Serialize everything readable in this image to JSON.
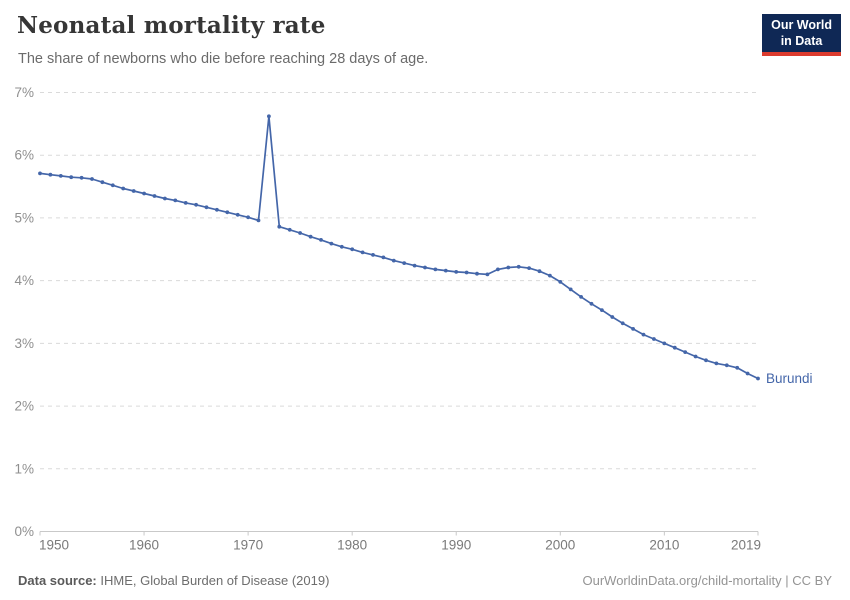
{
  "header": {
    "title": "Neonatal mortality rate",
    "subtitle": "The share of newborns who die before reaching 28 days of age.",
    "logo": {
      "line1": "Our World",
      "line2": "in Data",
      "bg_color": "#0f2855",
      "accent_color": "#dc3b2e"
    }
  },
  "chart_data": {
    "type": "line",
    "title": "Neonatal mortality rate",
    "subtitle": "The share of newborns who die before reaching 28 days of age.",
    "xlabel": "",
    "ylabel": "",
    "xlim": [
      1950,
      2019
    ],
    "ylim": [
      0,
      7
    ],
    "grid": "horizontal-dashed",
    "legend_position": "end-of-line-label",
    "y_ticks": [
      0,
      1,
      2,
      3,
      4,
      5,
      6,
      7
    ],
    "y_tick_labels": [
      "0%",
      "1%",
      "2%",
      "3%",
      "4%",
      "5%",
      "6%",
      "7%"
    ],
    "x_ticks": [
      1950,
      1960,
      1970,
      1980,
      1990,
      2000,
      2010,
      2019
    ],
    "x_tick_labels": [
      "1950",
      "1960",
      "1970",
      "1980",
      "1990",
      "2000",
      "2010",
      "2019"
    ],
    "series": [
      {
        "name": "Burundi",
        "color": "#4466a9",
        "x": [
          1950,
          1951,
          1952,
          1953,
          1954,
          1955,
          1956,
          1957,
          1958,
          1959,
          1960,
          1961,
          1962,
          1963,
          1964,
          1965,
          1966,
          1967,
          1968,
          1969,
          1970,
          1971,
          1972,
          1973,
          1974,
          1975,
          1976,
          1977,
          1978,
          1979,
          1980,
          1981,
          1982,
          1983,
          1984,
          1985,
          1986,
          1987,
          1988,
          1989,
          1990,
          1991,
          1992,
          1993,
          1994,
          1995,
          1996,
          1997,
          1998,
          1999,
          2000,
          2001,
          2002,
          2003,
          2004,
          2005,
          2006,
          2007,
          2008,
          2009,
          2010,
          2011,
          2012,
          2013,
          2014,
          2015,
          2016,
          2017,
          2018,
          2019
        ],
        "values": [
          5.71,
          5.69,
          5.67,
          5.65,
          5.64,
          5.62,
          5.57,
          5.52,
          5.47,
          5.43,
          5.39,
          5.35,
          5.31,
          5.28,
          5.24,
          5.21,
          5.17,
          5.13,
          5.09,
          5.05,
          5.01,
          4.96,
          6.62,
          4.86,
          4.81,
          4.76,
          4.7,
          4.65,
          4.59,
          4.54,
          4.5,
          4.45,
          4.41,
          4.37,
          4.32,
          4.28,
          4.24,
          4.21,
          4.18,
          4.16,
          4.14,
          4.13,
          4.11,
          4.1,
          4.18,
          4.21,
          4.22,
          4.2,
          4.15,
          4.08,
          3.98,
          3.86,
          3.74,
          3.63,
          3.53,
          3.42,
          3.32,
          3.23,
          3.14,
          3.07,
          3.0,
          2.93,
          2.86,
          2.79,
          2.73,
          2.68,
          2.65,
          2.61,
          2.52,
          2.44
        ]
      }
    ],
    "annotations": [
      {
        "text": "Burundi",
        "position": "line-end"
      }
    ]
  },
  "footer": {
    "datasource_label": "Data source:",
    "datasource_value": " IHME, Global Burden of Disease (2019)",
    "attribution_link": "OurWorldinData.org/child-mortality",
    "attribution_license": " | CC BY"
  },
  "colors": {
    "line": "#4466a9",
    "gridline": "#dadada",
    "axis": "#c9c9c9",
    "y_label": "#8f8f8f",
    "x_label": "#7a7a7a"
  }
}
